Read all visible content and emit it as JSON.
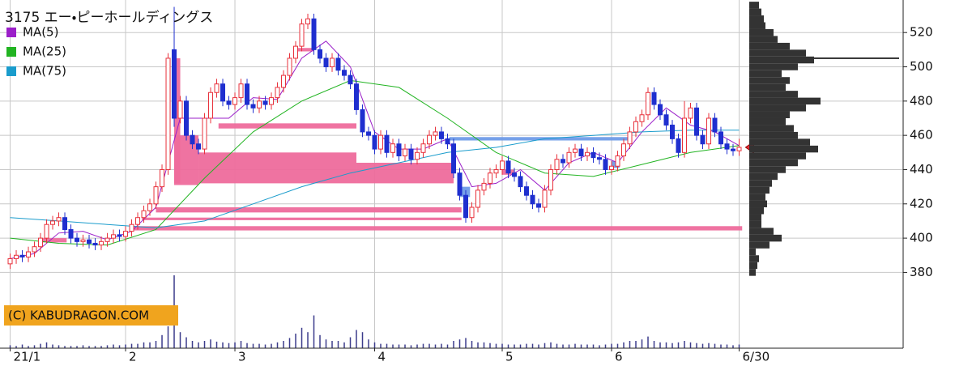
{
  "chart_data": {
    "type": "candlestick",
    "title": "3175 エー・ピーホールディングス",
    "watermark": "(C) KABUDRAGON.COM",
    "xlim": [
      -1.67,
      147
    ],
    "xticks": [
      {
        "value": 0,
        "label": "21/1"
      },
      {
        "value": 19,
        "label": "2"
      },
      {
        "value": 37,
        "label": "3"
      },
      {
        "value": 60,
        "label": "4"
      },
      {
        "value": 81,
        "label": "5"
      },
      {
        "value": 99,
        "label": "6"
      },
      {
        "value": 120,
        "label": "6/30"
      }
    ],
    "ylim": [
      375,
      539
    ],
    "yticks": [
      380,
      400,
      420,
      440,
      460,
      480,
      500,
      520
    ],
    "grid": true,
    "up_color": "#e8303a",
    "down_color": "#1f2fcf",
    "open": [
      385,
      388,
      390,
      389,
      392,
      395,
      400,
      408,
      410,
      412,
      405,
      400,
      398,
      399,
      397,
      396,
      398,
      400,
      402,
      401,
      404,
      408,
      412,
      416,
      420,
      430,
      440,
      510,
      470,
      480,
      460,
      455,
      452,
      470,
      485,
      490,
      480,
      478,
      482,
      490,
      478,
      476,
      480,
      478,
      482,
      488,
      495,
      505,
      512,
      525,
      528,
      510,
      505,
      500,
      505,
      498,
      495,
      490,
      475,
      462,
      460,
      452,
      460,
      450,
      455,
      448,
      452,
      446,
      450,
      455,
      460,
      462,
      458,
      455,
      438,
      425,
      412,
      418,
      428,
      432,
      438,
      440,
      445,
      438,
      436,
      430,
      425,
      420,
      418,
      428,
      440,
      446,
      444,
      450,
      452,
      448,
      450,
      447,
      446,
      440,
      442,
      448,
      455,
      462,
      468,
      472,
      485,
      478,
      472,
      466,
      458,
      450,
      470,
      476,
      460,
      455,
      470,
      462,
      455,
      452,
      451
    ],
    "high": [
      391,
      393,
      393,
      395,
      398,
      403,
      411,
      413,
      415,
      415,
      408,
      403,
      402,
      402,
      400,
      401,
      403,
      405,
      405,
      407,
      411,
      415,
      419,
      423,
      433,
      443,
      508,
      535,
      483,
      483,
      463,
      458,
      473,
      488,
      493,
      493,
      483,
      485,
      493,
      493,
      481,
      483,
      483,
      485,
      491,
      498,
      508,
      515,
      528,
      531,
      531,
      513,
      508,
      508,
      508,
      501,
      498,
      493,
      478,
      465,
      463,
      463,
      463,
      458,
      458,
      455,
      455,
      453,
      458,
      463,
      465,
      465,
      461,
      458,
      441,
      428,
      421,
      431,
      435,
      441,
      443,
      448,
      448,
      441,
      439,
      433,
      428,
      423,
      431,
      443,
      449,
      449,
      453,
      455,
      455,
      453,
      453,
      450,
      449,
      445,
      451,
      458,
      465,
      471,
      475,
      488,
      488,
      481,
      475,
      469,
      461,
      480,
      479,
      479,
      463,
      473,
      473,
      465,
      458,
      455,
      458
    ],
    "low": [
      382,
      385,
      386,
      386,
      389,
      392,
      397,
      405,
      407,
      402,
      397,
      395,
      395,
      394,
      393,
      393,
      395,
      397,
      398,
      398,
      401,
      405,
      409,
      413,
      417,
      427,
      437,
      465,
      467,
      457,
      452,
      449,
      449,
      467,
      482,
      477,
      475,
      475,
      479,
      475,
      473,
      473,
      475,
      475,
      479,
      485,
      492,
      502,
      509,
      522,
      507,
      502,
      497,
      497,
      495,
      492,
      487,
      472,
      459,
      457,
      449,
      449,
      447,
      447,
      445,
      445,
      443,
      443,
      447,
      452,
      457,
      455,
      452,
      435,
      422,
      409,
      409,
      415,
      425,
      429,
      435,
      437,
      435,
      433,
      427,
      422,
      417,
      415,
      415,
      425,
      437,
      441,
      441,
      447,
      445,
      445,
      444,
      443,
      437,
      437,
      439,
      445,
      452,
      459,
      465,
      469,
      475,
      469,
      463,
      455,
      447,
      447,
      467,
      457,
      452,
      452,
      459,
      452,
      449,
      448,
      448
    ],
    "close": [
      388,
      390,
      389,
      392,
      395,
      400,
      408,
      410,
      412,
      405,
      400,
      398,
      399,
      397,
      396,
      398,
      400,
      402,
      401,
      404,
      408,
      412,
      416,
      420,
      430,
      440,
      505,
      470,
      480,
      460,
      455,
      452,
      470,
      485,
      490,
      480,
      478,
      482,
      490,
      478,
      476,
      480,
      478,
      482,
      488,
      495,
      505,
      512,
      525,
      528,
      510,
      505,
      500,
      505,
      498,
      495,
      490,
      475,
      462,
      460,
      452,
      460,
      450,
      455,
      448,
      452,
      446,
      450,
      455,
      460,
      462,
      458,
      455,
      438,
      425,
      412,
      418,
      428,
      432,
      438,
      440,
      445,
      438,
      436,
      430,
      425,
      420,
      418,
      428,
      440,
      446,
      444,
      450,
      452,
      448,
      450,
      447,
      446,
      440,
      442,
      448,
      455,
      462,
      468,
      472,
      485,
      478,
      472,
      466,
      458,
      450,
      470,
      476,
      460,
      455,
      470,
      462,
      455,
      452,
      451,
      453
    ],
    "volume": [
      4,
      3,
      5,
      3,
      4,
      6,
      8,
      5,
      4,
      3,
      3,
      3,
      4,
      3,
      3,
      3,
      4,
      5,
      4,
      5,
      6,
      6,
      8,
      8,
      10,
      18,
      30,
      100,
      22,
      15,
      10,
      8,
      10,
      12,
      9,
      8,
      7,
      8,
      10,
      7,
      6,
      6,
      5,
      6,
      8,
      10,
      14,
      20,
      28,
      22,
      45,
      18,
      12,
      10,
      10,
      8,
      15,
      25,
      22,
      12,
      8,
      6,
      6,
      5,
      5,
      5,
      4,
      5,
      6,
      6,
      5,
      6,
      5,
      10,
      12,
      14,
      10,
      8,
      8,
      7,
      6,
      6,
      5,
      5,
      5,
      6,
      6,
      5,
      7,
      8,
      6,
      5,
      5,
      6,
      5,
      5,
      5,
      4,
      5,
      6,
      6,
      8,
      10,
      10,
      12,
      16,
      10,
      8,
      8,
      7,
      8,
      10,
      8,
      7,
      6,
      7,
      6,
      5,
      5,
      4,
      5
    ],
    "volume_ylim": [
      0,
      100
    ],
    "volume_color": "#3c3c8c",
    "series": [
      {
        "name": "MA(5)",
        "color": "#9b1fc9",
        "x": [
          0,
          4,
          8,
          12,
          16,
          20,
          24,
          28,
          32,
          36,
          40,
          44,
          48,
          52,
          56,
          60,
          64,
          68,
          72,
          76,
          80,
          84,
          88,
          92,
          96,
          100,
          104,
          108,
          112,
          116,
          120
        ],
        "values": [
          388,
          391,
          403,
          404,
          399,
          404,
          418,
          470,
          470,
          470,
          482,
          481,
          505,
          515,
          500,
          462,
          452,
          452,
          458,
          430,
          432,
          440,
          428,
          444,
          450,
          444,
          462,
          476,
          466,
          462,
          454
        ]
      },
      {
        "name": "MA(25)",
        "color": "#22b422",
        "x": [
          0,
          8,
          16,
          24,
          32,
          40,
          48,
          56,
          64,
          72,
          80,
          88,
          96,
          104,
          112,
          120
        ],
        "values": [
          400,
          397,
          396,
          405,
          435,
          462,
          480,
          492,
          488,
          470,
          450,
          438,
          436,
          443,
          450,
          454
        ]
      },
      {
        "name": "MA(75)",
        "color": "#1a9ccc",
        "x": [
          0,
          8,
          16,
          24,
          32,
          40,
          48,
          56,
          64,
          72,
          80,
          88,
          96,
          104,
          112,
          120
        ],
        "values": [
          412,
          410,
          408,
          406,
          410,
          420,
          430,
          438,
          444,
          450,
          453,
          458,
          460,
          462,
          463,
          463
        ]
      }
    ],
    "zones": [
      {
        "start": 27,
        "end": 28,
        "low": 432,
        "high": 505,
        "color": "#ee6b9c"
      },
      {
        "start": 27,
        "end": 31,
        "low": 431,
        "high": 460,
        "color": "#ee6b9c"
      },
      {
        "start": 31,
        "end": 57,
        "low": 432,
        "high": 450,
        "color": "#ee6b9c"
      },
      {
        "start": 57,
        "end": 73,
        "low": 432,
        "high": 444,
        "color": "#ee6b9c"
      },
      {
        "start": 34.3,
        "end": 57,
        "low": 464,
        "high": 467,
        "color": "#ee6b9c"
      },
      {
        "start": 47,
        "end": 50,
        "low": 509,
        "high": 511,
        "color": "#ee6b9c"
      },
      {
        "start": 24,
        "end": 74.3,
        "low": 415,
        "high": 418,
        "color": "#ee6b9c"
      },
      {
        "start": 21.7,
        "end": 74.3,
        "low": 410.5,
        "high": 412,
        "color": "#ee6b9c"
      },
      {
        "start": 19.7,
        "end": 120.5,
        "low": 404.5,
        "high": 407,
        "color": "#ee6b9c"
      },
      {
        "start": 4.7,
        "end": 9.3,
        "low": 397.5,
        "high": 400,
        "color": "#ee6b9c"
      },
      {
        "start": 81,
        "end": 83,
        "low": 437,
        "high": 440,
        "color": "#ee6b9c"
      },
      {
        "start": 72.3,
        "end": 102,
        "low": 457,
        "high": 459,
        "color": "#6f9be8"
      },
      {
        "start": 74,
        "end": 75.7,
        "low": 424,
        "high": 430,
        "color": "#6f9be8"
      },
      {
        "start": 99,
        "end": 100.3,
        "low": 441,
        "high": 445,
        "color": "#6f9be8"
      }
    ],
    "profile": {
      "bins": [
        378,
        382,
        386,
        390,
        394,
        398,
        402,
        406,
        410,
        414,
        418,
        422,
        426,
        430,
        434,
        438,
        442,
        446,
        450,
        454,
        458,
        462,
        466,
        470,
        474,
        478,
        482,
        486,
        490,
        494,
        498,
        502,
        506,
        510,
        514,
        518,
        522,
        526,
        530,
        534,
        538
      ],
      "counts": [
        8,
        10,
        12,
        8,
        25,
        40,
        30,
        15,
        15,
        18,
        22,
        20,
        25,
        28,
        35,
        45,
        60,
        70,
        85,
        75,
        60,
        55,
        45,
        50,
        70,
        88,
        60,
        45,
        50,
        40,
        60,
        80,
        70,
        50,
        35,
        30,
        20,
        18,
        15,
        12
      ],
      "xlim": [
        0,
        190
      ],
      "color": "#333333"
    },
    "profile_peak": {
      "price": 505,
      "value": 185
    }
  }
}
